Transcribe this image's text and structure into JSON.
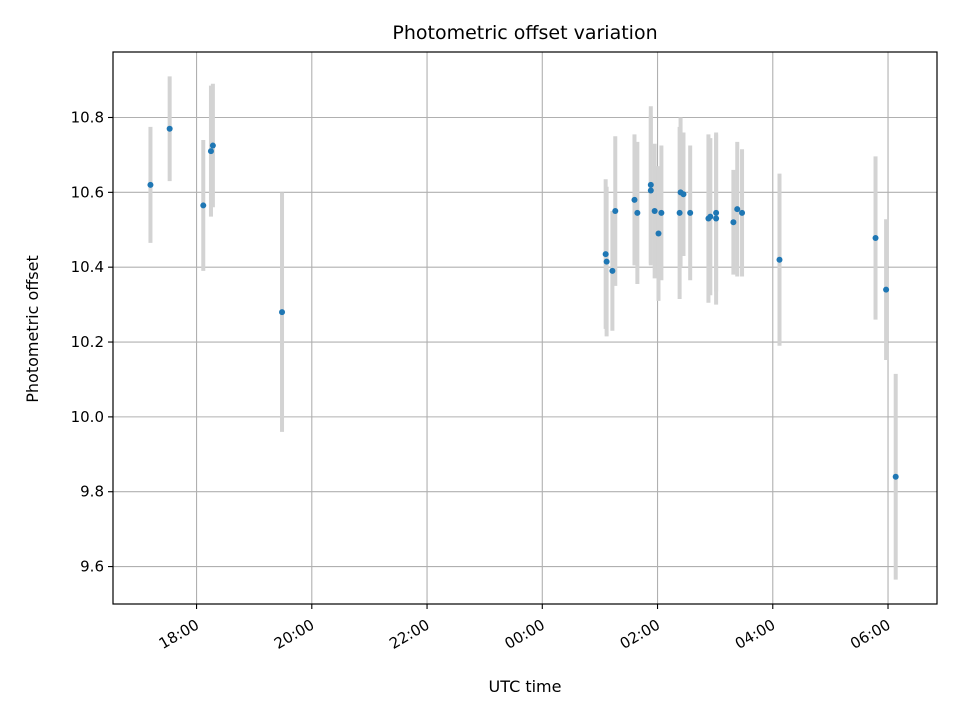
{
  "chart_data": {
    "type": "scatter",
    "title": "Photometric offset variation",
    "xlabel": "UTC time",
    "ylabel": "Photometric offset",
    "xlim_hours": [
      16.55,
      30.85
    ],
    "ylim": [
      9.5,
      10.975
    ],
    "x_ticks": [
      {
        "hour": 18,
        "label": "18:00"
      },
      {
        "hour": 20,
        "label": "20:00"
      },
      {
        "hour": 22,
        "label": "22:00"
      },
      {
        "hour": 24,
        "label": "00:00"
      },
      {
        "hour": 26,
        "label": "02:00"
      },
      {
        "hour": 28,
        "label": "04:00"
      },
      {
        "hour": 30,
        "label": "06:00"
      }
    ],
    "y_ticks": [
      {
        "value": 9.6,
        "label": "9.6"
      },
      {
        "value": 9.8,
        "label": "9.8"
      },
      {
        "value": 10.0,
        "label": "10.0"
      },
      {
        "value": 10.2,
        "label": "10.2"
      },
      {
        "value": 10.4,
        "label": "10.4"
      },
      {
        "value": 10.6,
        "label": "10.6"
      },
      {
        "value": 10.8,
        "label": "10.8"
      }
    ],
    "grid": true,
    "point_color": "#1f77b4",
    "errorbar_color": "#d3d3d3",
    "points": [
      {
        "t": "17:12",
        "y": 10.62,
        "err": 0.155
      },
      {
        "t": "17:32",
        "y": 10.77,
        "err": 0.14
      },
      {
        "t": "18:07",
        "y": 10.565,
        "err": 0.175
      },
      {
        "t": "18:15",
        "y": 10.71,
        "err": 0.175
      },
      {
        "t": "18:17",
        "y": 10.725,
        "err": 0.165
      },
      {
        "t": "19:29",
        "y": 10.28,
        "err": 0.32
      },
      {
        "t": "01:06",
        "y": 10.435,
        "err": 0.2
      },
      {
        "t": "01:07",
        "y": 10.415,
        "err": 0.2
      },
      {
        "t": "01:13",
        "y": 10.39,
        "err": 0.16
      },
      {
        "t": "01:16",
        "y": 10.55,
        "err": 0.2
      },
      {
        "t": "01:36",
        "y": 10.58,
        "err": 0.175
      },
      {
        "t": "01:39",
        "y": 10.545,
        "err": 0.19
      },
      {
        "t": "01:53",
        "y": 10.62,
        "err": 0.21
      },
      {
        "t": "01:53",
        "y": 10.605,
        "err": 0.2
      },
      {
        "t": "01:57",
        "y": 10.55,
        "err": 0.18
      },
      {
        "t": "02:01",
        "y": 10.49,
        "err": 0.18
      },
      {
        "t": "02:04",
        "y": 10.545,
        "err": 0.18
      },
      {
        "t": "02:23",
        "y": 10.545,
        "err": 0.23
      },
      {
        "t": "02:24",
        "y": 10.6,
        "err": 0.2
      },
      {
        "t": "02:27",
        "y": 10.595,
        "err": 0.165
      },
      {
        "t": "02:34",
        "y": 10.545,
        "err": 0.18
      },
      {
        "t": "02:53",
        "y": 10.53,
        "err": 0.225
      },
      {
        "t": "02:55",
        "y": 10.535,
        "err": 0.21
      },
      {
        "t": "03:01",
        "y": 10.545,
        "err": 0.21
      },
      {
        "t": "03:01",
        "y": 10.53,
        "err": 0.23
      },
      {
        "t": "03:19",
        "y": 10.52,
        "err": 0.14
      },
      {
        "t": "03:23",
        "y": 10.555,
        "err": 0.18
      },
      {
        "t": "03:28",
        "y": 10.545,
        "err": 0.17
      },
      {
        "t": "04:07",
        "y": 10.42,
        "err": 0.23
      },
      {
        "t": "05:47",
        "y": 10.478,
        "err": 0.218
      },
      {
        "t": "05:58",
        "y": 10.34,
        "err": 0.188
      },
      {
        "t": "06:08",
        "y": 9.84,
        "err": 0.275
      }
    ]
  }
}
